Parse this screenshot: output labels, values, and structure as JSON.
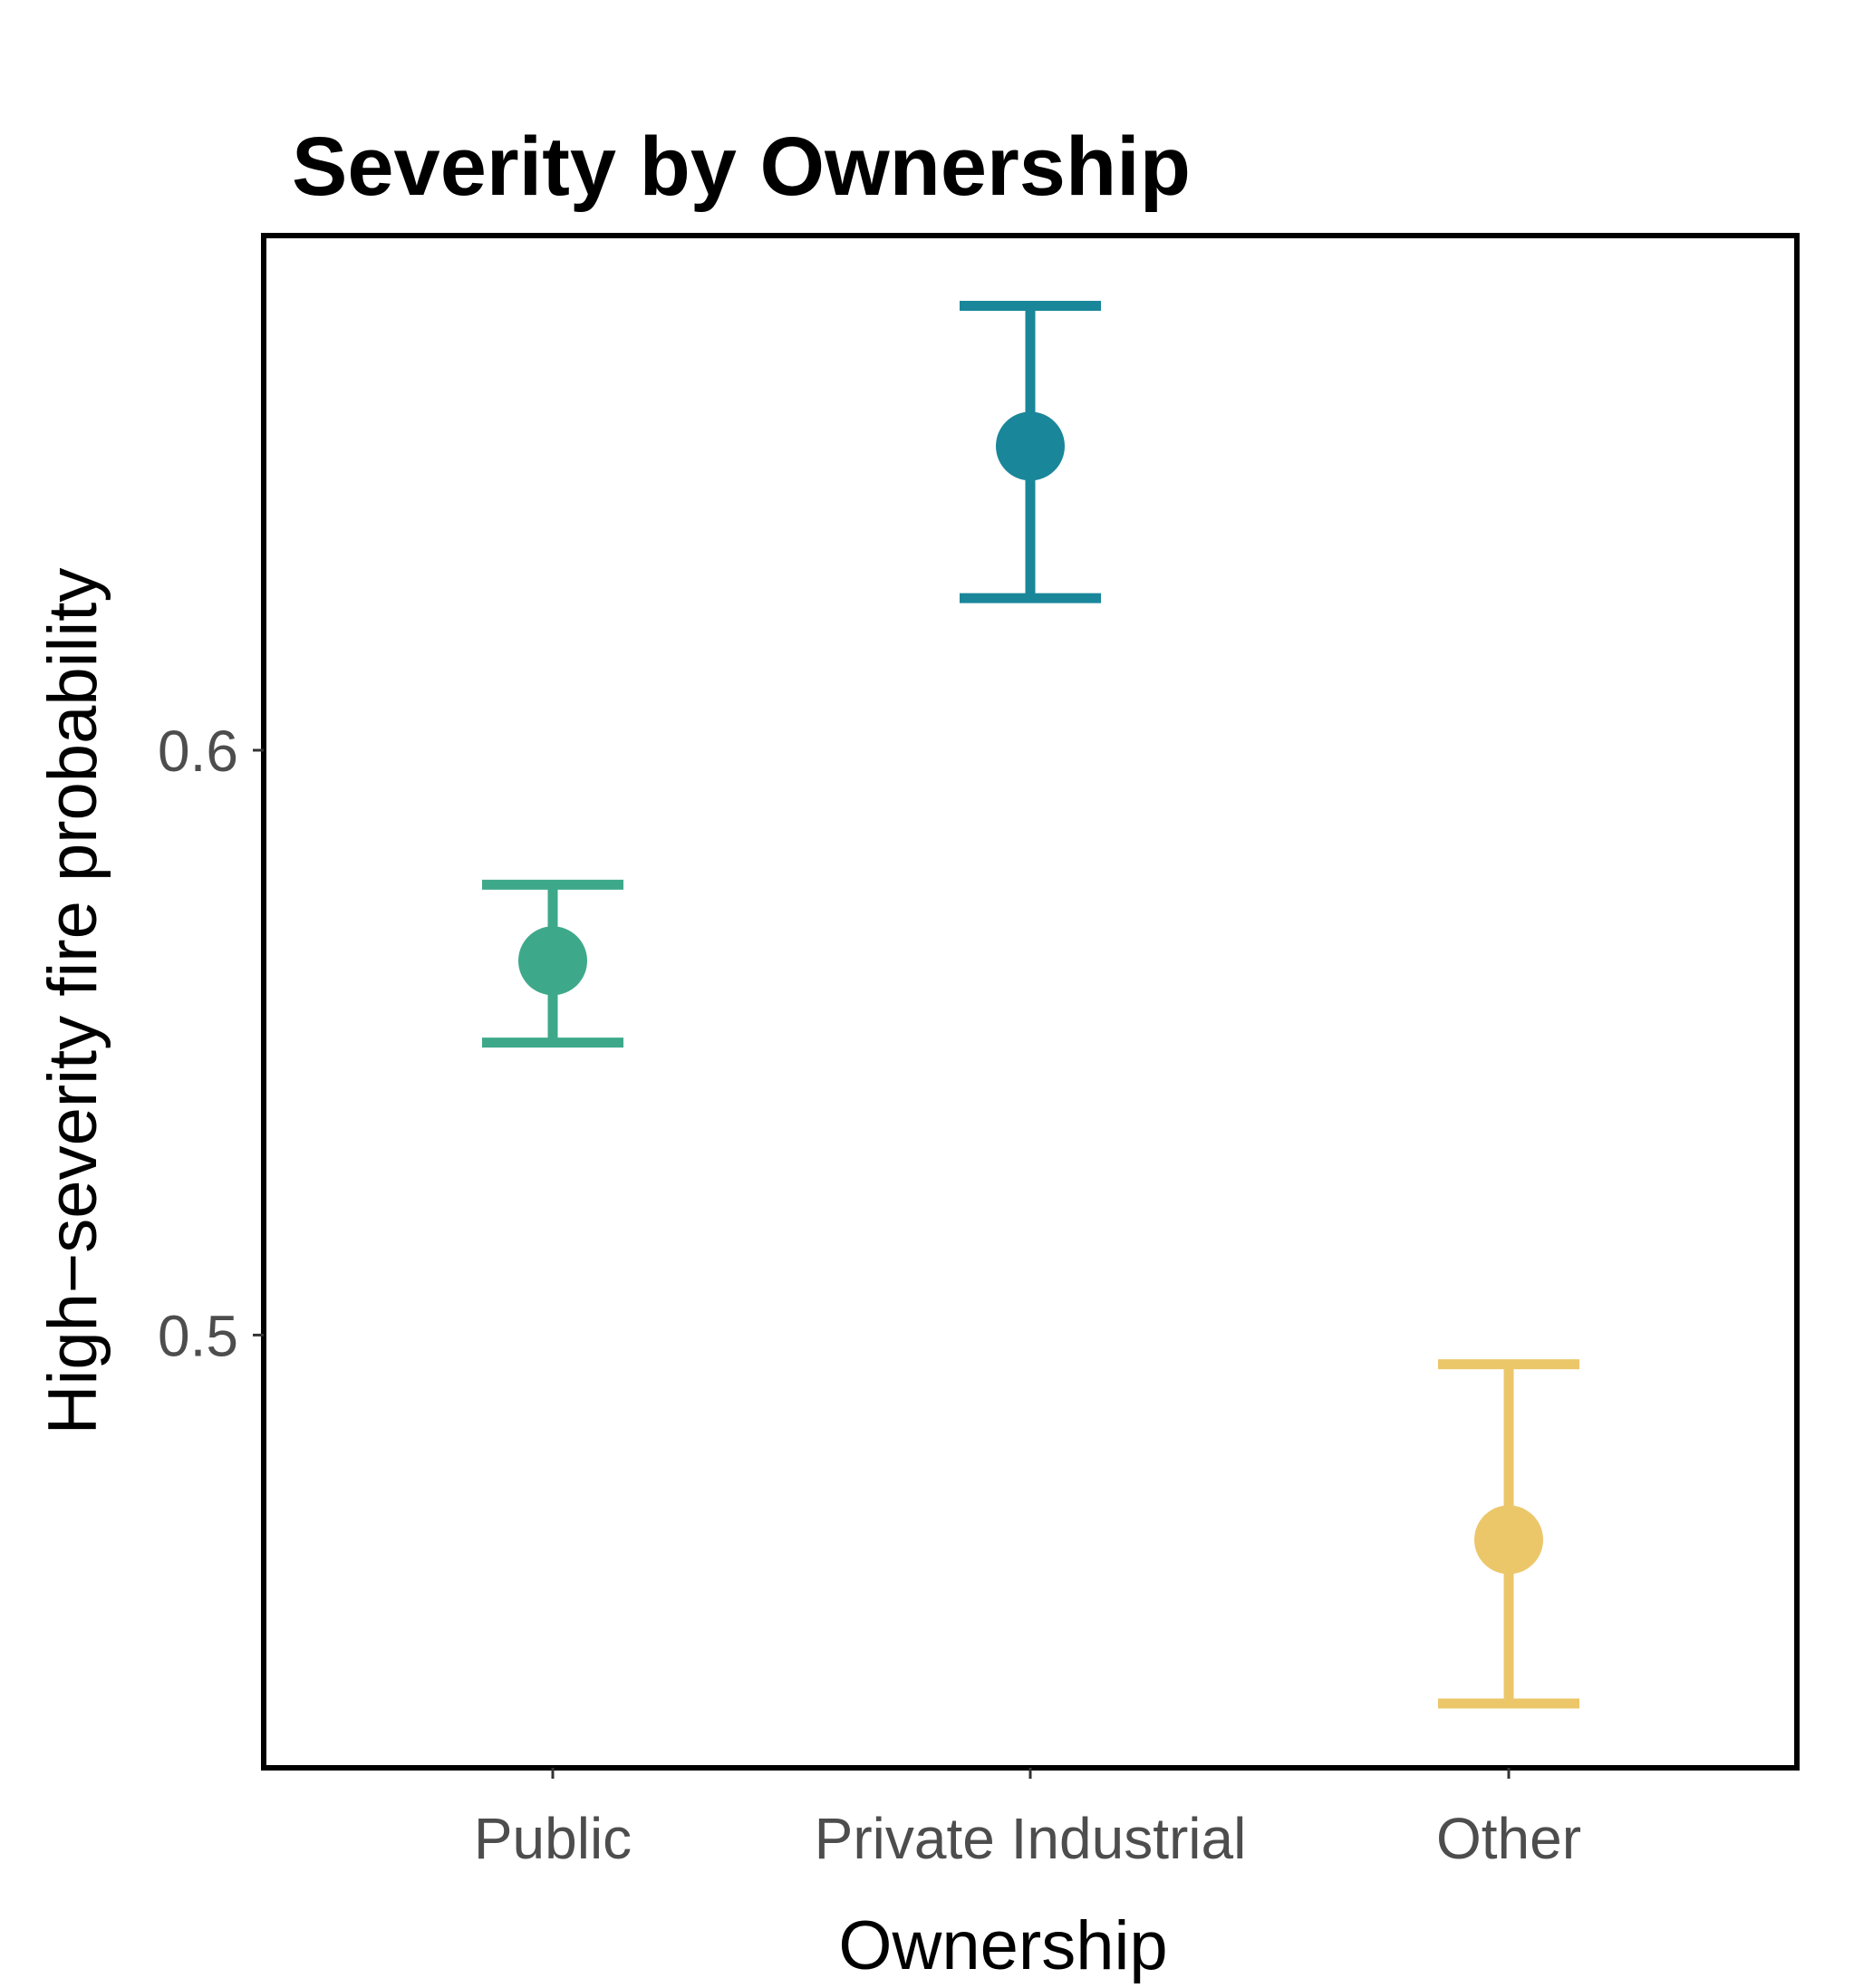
{
  "chart_data": {
    "type": "scatter",
    "subtype": "point-with-error-bars",
    "title": "Severity by Ownership",
    "xlabel": "Ownership",
    "ylabel": "High−severity fire probability",
    "categories": [
      "Public",
      "Private Industrial",
      "Other"
    ],
    "points": [
      {
        "category": "Public",
        "value": 0.564,
        "lower": 0.55,
        "upper": 0.577,
        "color": "#3ea98a"
      },
      {
        "category": "Private Industrial",
        "value": 0.652,
        "lower": 0.626,
        "upper": 0.676,
        "color": "#1a869a"
      },
      {
        "category": "Other",
        "value": 0.465,
        "lower": 0.437,
        "upper": 0.495,
        "color": "#ecc76a"
      }
    ],
    "yticks": [
      {
        "value": 0.5,
        "label": "0.5"
      },
      {
        "value": 0.6,
        "label": "0.6"
      }
    ],
    "ylim": [
      0.426,
      0.688
    ],
    "grid": false,
    "legend": "none"
  }
}
